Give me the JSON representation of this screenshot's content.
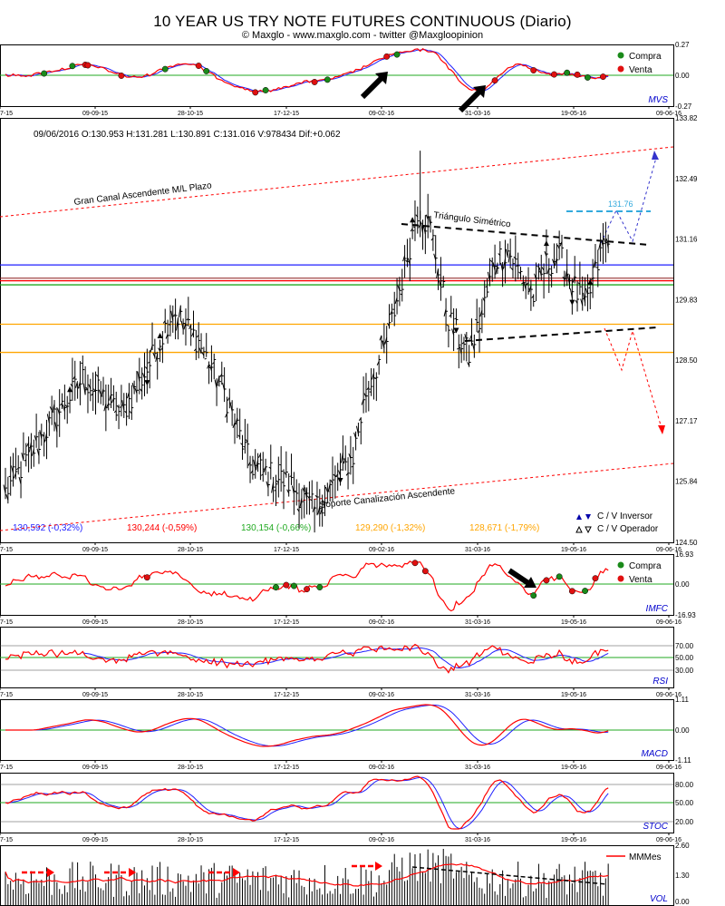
{
  "chart_data": {
    "type": "line",
    "title": "10 YEAR US TRY NOTE FUTURES CONTINUOUS (Diario)",
    "subtitle": "© Maxglo - www.maxglo.com - twitter @Maxgloopinion",
    "x_ticks": [
      "7-15",
      "09-09-15",
      "28-10-15",
      "17-12-15",
      "09-02-16",
      "31-03-16",
      "19-05-16",
      "09-06-16"
    ],
    "colors": {
      "red": "#ff0000",
      "blue": "#1f1fff",
      "green": "#22aa22",
      "orange": "#ffa500",
      "maroon": "#8b1a1a",
      "black": "#000000",
      "cyan": "#33aadd"
    },
    "price_panel": {
      "ohlc_label": "09/06/2016  O:130.953  H:131.281  L:130.891  C:131.016  V:978434  Dif:+0.062",
      "ylim": [
        124.5,
        133.82
      ],
      "yticks": [
        "133.82",
        "132.49",
        "131.16",
        "129.83",
        "128.50",
        "127.17",
        "125.84",
        "124.50"
      ],
      "levels": [
        {
          "value": 130.592,
          "label": "130,592 (-0,32%)",
          "color": "#1f1fff"
        },
        {
          "value": 130.244,
          "label": "130,244 (-0,59%)",
          "color": "#ff0000"
        },
        {
          "value": 130.154,
          "label": "130,154 (-0,66%)",
          "color": "#22aa22"
        },
        {
          "value": 129.29,
          "label": "129,290 (-1,32%)",
          "color": "#ffa500"
        },
        {
          "value": 128.671,
          "label": "128,671 (-1,79%)",
          "color": "#ffa500"
        }
      ],
      "annotations": {
        "upper_channel": "Gran Canal Ascendente M/L Plazo",
        "lower_channel": "Soporte Canalización Ascendente",
        "triangle": "Triángulo Simétrico",
        "target": "131.76"
      },
      "legend": [
        "C / V Inversor",
        "C / V Operador"
      ]
    },
    "indicators": [
      {
        "name": "MVS",
        "yticks": [
          "0.27",
          "0.00",
          "-0.27"
        ],
        "legend": [
          "Compra",
          "Venta"
        ]
      },
      {
        "name": "IMFC",
        "yticks": [
          "16.93",
          "0.00",
          "-16.93"
        ],
        "legend": [
          "Compra",
          "Venta"
        ]
      },
      {
        "name": "RSI",
        "yticks": [
          "70.00",
          "50.00",
          "30.00"
        ]
      },
      {
        "name": "MACD",
        "yticks": [
          "1.11",
          "0.00",
          "-1.11"
        ]
      },
      {
        "name": "STOC",
        "yticks": [
          "80.00",
          "50.00",
          "20.00"
        ]
      },
      {
        "name": "VOL",
        "yticks": [
          "2.60",
          "1.30",
          "0.00"
        ],
        "legend": [
          "MMMes"
        ]
      }
    ]
  }
}
